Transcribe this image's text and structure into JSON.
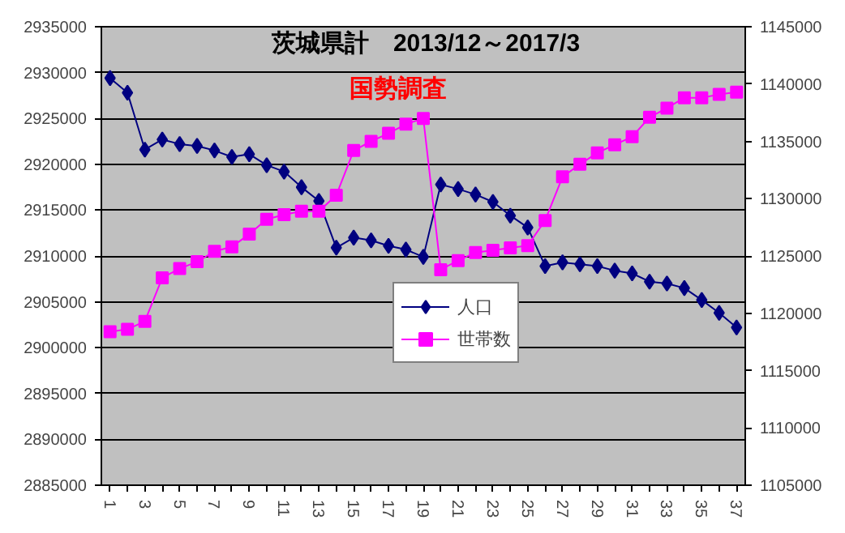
{
  "chart_data": {
    "type": "line",
    "title": "茨城県計　2013/12～2017/3",
    "annotations": [
      "国勢調査"
    ],
    "categories": [
      "1",
      null,
      "3",
      null,
      "5",
      null,
      "7",
      null,
      "9",
      null,
      "11",
      null,
      "13",
      null,
      "15",
      null,
      "17",
      null,
      "19",
      null,
      "21",
      null,
      "23",
      null,
      "25",
      null,
      "27",
      null,
      "29",
      null,
      "31",
      null,
      "33",
      null,
      "35",
      null,
      "37"
    ],
    "series": [
      {
        "name": "人口",
        "color": "#000080",
        "marker": "diamond",
        "values": [
          2929400,
          2927800,
          2921600,
          2922700,
          2922200,
          2922000,
          2921500,
          2920800,
          2921100,
          2919900,
          2919200,
          2917500,
          2916000,
          2910900,
          2912000,
          2911700,
          2911100,
          2910700,
          2909900,
          2917800,
          2917300,
          2916700,
          2915900,
          2914400,
          2913100,
          2908900,
          2909300,
          2909100,
          2908900,
          2908400,
          2908100,
          2907200,
          2907000,
          2906500,
          2905200,
          2903800,
          2902200
        ]
      },
      {
        "name": "世帯数",
        "color": "#ff00ff",
        "marker": "square",
        "axis": "y2",
        "values": [
          1118400,
          1118600,
          1119300,
          1123100,
          1123900,
          1124500,
          1125400,
          1125800,
          1126900,
          1128200,
          1128600,
          1128900,
          1128900,
          1130300,
          1134200,
          1135000,
          1135700,
          1136500,
          1137000,
          1123800,
          1124600,
          1125300,
          1125500,
          1125700,
          1125900,
          1128100,
          1131900,
          1133000,
          1134000,
          1134700,
          1135400,
          1137100,
          1137900,
          1138800,
          1138800,
          1139100,
          1139300
        ]
      }
    ],
    "ylim": [
      2885000,
      2935000
    ],
    "yticks": [
      2885000,
      2890000,
      2895000,
      2900000,
      2905000,
      2910000,
      2915000,
      2920000,
      2925000,
      2930000,
      2935000
    ],
    "y2lim": [
      1105000,
      1145000
    ],
    "y2ticks": [
      1105000,
      1110000,
      1115000,
      1120000,
      1125000,
      1130000,
      1135000,
      1140000,
      1145000
    ],
    "grid": "y",
    "legend": "bottom"
  }
}
